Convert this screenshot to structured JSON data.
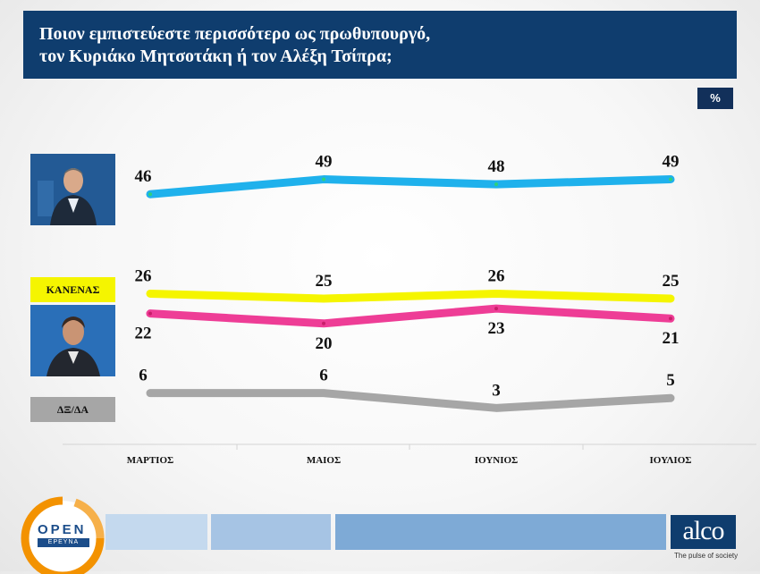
{
  "header": {
    "title_line1": "Ποιον εμπιστεύεστε περισσότερο ως πρωθυπουργό,",
    "title_line2": "τον Κυριάκο Μητσοτάκη ή τον Αλέξη Τσίπρα;"
  },
  "badge": {
    "unit": "%"
  },
  "labels": {
    "none": "ΚΑΝΕΝΑΣ",
    "dk_na": "ΔΞ/ΔΑ"
  },
  "chart_data": {
    "type": "line",
    "title": "Ποιον εμπιστεύεστε περισσότερο ως πρωθυπουργό, τον Κυριάκο Μητσοτάκη ή τον Αλέξη Τσίπρα;",
    "categories": [
      "ΜΑΡΤΙΟΣ",
      "ΜΑΙΟΣ",
      "ΙΟΥΝΙΟΣ",
      "ΙΟΥΛΙΟΣ"
    ],
    "unit": "%",
    "series": [
      {
        "values": [
          46,
          49,
          48,
          49
        ],
        "color": "#1fb1ec"
      },
      {
        "name": "ΚΑΝΕΝΑΣ",
        "values": [
          26,
          25,
          26,
          25
        ],
        "color": "#f5f500"
      },
      {
        "values": [
          22,
          20,
          23,
          21
        ],
        "color": "#ee3d96"
      },
      {
        "name": "ΔΞ/ΔΑ",
        "values": [
          6,
          6,
          3,
          5
        ],
        "color": "#a6a6a6"
      }
    ],
    "grid": false,
    "legend": "left"
  },
  "footer": {
    "brand_left": "OPEN",
    "brand_left_sub": "ΕΡΕΥΝΑ",
    "brand_right": "alco",
    "brand_right_tag": "The pulse of society"
  },
  "colors": {
    "header_bg": "#0f3d6e",
    "badge_bg": "#12305a",
    "none_label_bg": "#f5f500",
    "dkna_label_bg": "#a6a6a6"
  }
}
